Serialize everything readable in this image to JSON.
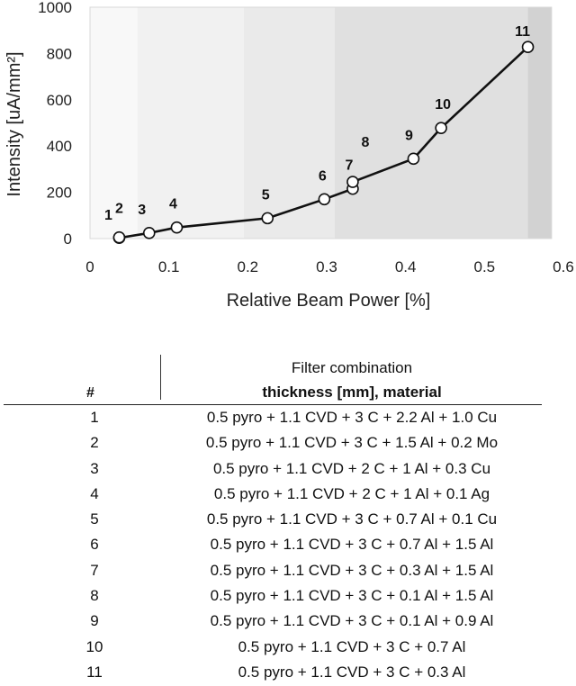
{
  "chart_data": {
    "type": "scatter",
    "xlabel": "Relative Beam Power [%]",
    "ylabel": "Intensity [uA/mm²]",
    "xlim": [
      0,
      0.6
    ],
    "ylim": [
      0,
      1000
    ],
    "x_ticks": [
      "0",
      "0.1",
      "0.2",
      "0.3",
      "0.4",
      "0.5",
      "0.6"
    ],
    "y_ticks": [
      "0",
      "200",
      "400",
      "600",
      "800",
      "1000"
    ],
    "grid": false,
    "background_bands": [
      {
        "from": 0.0,
        "to": 0.06,
        "color": "#f8f8f8"
      },
      {
        "from": 0.06,
        "to": 0.195,
        "color": "#f1f1f1"
      },
      {
        "from": 0.195,
        "to": 0.31,
        "color": "#eaeaea"
      },
      {
        "from": 0.31,
        "to": 0.555,
        "color": "#e0e0e0"
      },
      {
        "from": 0.555,
        "to": 0.585,
        "color": "#d2d2d2"
      }
    ],
    "series": [
      {
        "line_color": "#111111",
        "points": [
          {
            "label": "1",
            "x": 0.037,
            "y": 3
          },
          {
            "label": "2",
            "x": 0.037,
            "y": 5
          },
          {
            "label": "3",
            "x": 0.075,
            "y": 24
          },
          {
            "label": "4",
            "x": 0.11,
            "y": 48
          },
          {
            "label": "5",
            "x": 0.225,
            "y": 88
          },
          {
            "label": "6",
            "x": 0.297,
            "y": 170
          },
          {
            "label": "7",
            "x": 0.333,
            "y": 215
          },
          {
            "label": "8",
            "x": 0.333,
            "y": 245
          },
          {
            "label": "9",
            "x": 0.41,
            "y": 345
          },
          {
            "label": "10",
            "x": 0.445,
            "y": 478
          },
          {
            "label": "11",
            "x": 0.555,
            "y": 828
          }
        ]
      }
    ]
  },
  "table": {
    "header_num": "#",
    "header_line1": "Filter combination",
    "header_line2": "thickness [mm], material",
    "rows": [
      {
        "num": "1",
        "filter": "0.5 pyro + 1.1 CVD + 3 C + 2.2 Al + 1.0 Cu"
      },
      {
        "num": "2",
        "filter": "0.5 pyro + 1.1 CVD + 3 C + 1.5 Al + 0.2 Mo"
      },
      {
        "num": "3",
        "filter": "0.5 pyro + 1.1 CVD + 2 C + 1 Al + 0.3 Cu"
      },
      {
        "num": "4",
        "filter": "0.5 pyro + 1.1 CVD + 2 C + 1 Al + 0.1 Ag"
      },
      {
        "num": "5",
        "filter": "0.5 pyro + 1.1 CVD + 3 C + 0.7 Al + 0.1 Cu"
      },
      {
        "num": "6",
        "filter": "0.5 pyro + 1.1 CVD + 3 C + 0.7 Al + 1.5 Al"
      },
      {
        "num": "7",
        "filter": "0.5 pyro + 1.1 CVD + 3 C + 0.3 Al + 1.5 Al"
      },
      {
        "num": "8",
        "filter": "0.5 pyro + 1.1 CVD + 3 C + 0.1 Al + 1.5 Al"
      },
      {
        "num": "9",
        "filter": "0.5 pyro + 1.1 CVD + 3 C + 0.1 Al + 0.9 Al"
      },
      {
        "num": "10",
        "filter": "0.5 pyro + 1.1 CVD + 3 C + 0.7 Al"
      },
      {
        "num": "11",
        "filter": "0.5 pyro + 1.1 CVD + 3 C + 0.3 Al"
      }
    ]
  }
}
